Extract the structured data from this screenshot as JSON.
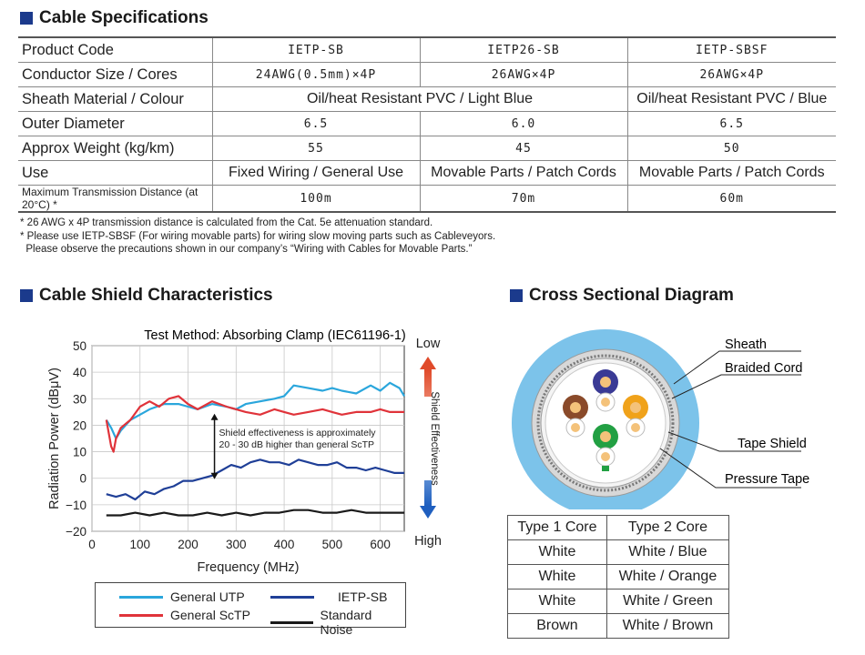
{
  "specs": {
    "title": "Cable Specifications",
    "header": {
      "label": "Product Code",
      "col1": "IETP-SB",
      "col2": "IETP26-SB",
      "col3": "IETP-SBSF"
    },
    "rows": [
      {
        "label": "Conductor Size / Cores",
        "col1": "24AWG(0.5mm)×4P",
        "col2": "26AWG×4P",
        "col3": "26AWG×4P"
      },
      {
        "label": "Sheath Material / Colour",
        "col12": "Oil/heat Resistant PVC / Light Blue",
        "col3": "Oil/heat Resistant PVC / Blue"
      },
      {
        "label": "Outer Diameter",
        "col1": "6.5",
        "col2": "6.0",
        "col3": "6.5"
      },
      {
        "label": "Approx Weight (kg/km)",
        "col1": "55",
        "col2": "45",
        "col3": "50"
      },
      {
        "label": "Use",
        "col1": "Fixed Wiring / General Use",
        "col2": "Movable Parts / Patch Cords",
        "col3": "Movable Parts / Patch Cords"
      },
      {
        "label": "Maximum Transmission Distance (at 20°C) *",
        "col1": "100m",
        "col2": "70m",
        "col3": "60m"
      }
    ],
    "notes": [
      "* 26 AWG x 4P transmission distance is calculated from the Cat. 5e attenuation standard.",
      "* Please use IETP-SBSF (For wiring movable parts) for wiring slow moving parts such as Cableveyors.",
      "  Please observe the precautions shown in our company’s “Wiring with Cables for Movable Parts.”"
    ]
  },
  "shield": {
    "title": "Cable Shield Characteristics"
  },
  "chart_data": {
    "type": "line",
    "title": "Test Method: Absorbing Clamp (IEC61196-1)",
    "xlabel": "Frequency (MHz)",
    "ylabel": "Radiation Power (dBμV)",
    "xlim": [
      0,
      650
    ],
    "ylim": [
      -20,
      50
    ],
    "xticks": [
      "0",
      "100",
      "200",
      "300",
      "400",
      "500",
      "600"
    ],
    "xtick_values": [
      0,
      100,
      200,
      300,
      400,
      500,
      600
    ],
    "yticks": [
      "50",
      "40",
      "30",
      "20",
      "10",
      "0",
      "−10",
      "−20"
    ],
    "ytick_values": [
      50,
      40,
      30,
      20,
      10,
      0,
      -10,
      -20
    ],
    "series": [
      {
        "name": "General UTP",
        "color": "#2aa6dc",
        "x": [
          30,
          40,
          50,
          60,
          80,
          100,
          120,
          150,
          180,
          200,
          220,
          250,
          280,
          300,
          320,
          350,
          380,
          400,
          420,
          450,
          480,
          500,
          520,
          550,
          580,
          600,
          620,
          640,
          650
        ],
        "y": [
          22,
          19,
          15,
          18,
          22,
          24,
          26,
          28,
          28,
          27,
          26,
          28,
          27,
          26,
          28,
          29,
          30,
          31,
          35,
          34,
          33,
          34,
          33,
          32,
          35,
          33,
          36,
          34,
          31
        ]
      },
      {
        "name": "General ScTP",
        "color": "#e0333a",
        "x": [
          30,
          40,
          45,
          50,
          60,
          80,
          100,
          120,
          140,
          160,
          180,
          200,
          220,
          250,
          280,
          300,
          320,
          350,
          380,
          400,
          420,
          450,
          480,
          500,
          520,
          550,
          580,
          600,
          620,
          650
        ],
        "y": [
          22,
          12,
          10,
          15,
          19,
          22,
          27,
          29,
          27,
          30,
          31,
          28,
          26,
          29,
          27,
          26,
          25,
          24,
          26,
          25,
          24,
          25,
          26,
          25,
          24,
          25,
          25,
          26,
          25,
          25
        ]
      },
      {
        "name": "IETP-SB",
        "color": "#1f3f97",
        "x": [
          30,
          50,
          70,
          90,
          110,
          130,
          150,
          170,
          190,
          210,
          230,
          250,
          270,
          290,
          310,
          330,
          350,
          370,
          390,
          410,
          430,
          450,
          470,
          490,
          510,
          530,
          550,
          570,
          590,
          610,
          630,
          650
        ],
        "y": [
          -6,
          -7,
          -6,
          -8,
          -5,
          -6,
          -4,
          -3,
          -1,
          -1,
          0,
          1,
          3,
          5,
          4,
          6,
          7,
          6,
          6,
          5,
          7,
          6,
          5,
          5,
          6,
          4,
          4,
          3,
          4,
          3,
          2,
          2
        ]
      },
      {
        "name": "Standard Noise",
        "color": "#1a1a1a",
        "x": [
          30,
          60,
          90,
          120,
          150,
          180,
          210,
          240,
          270,
          300,
          330,
          360,
          390,
          420,
          450,
          480,
          510,
          540,
          570,
          600,
          630,
          650
        ],
        "y": [
          -14,
          -14,
          -13,
          -14,
          -13,
          -14,
          -14,
          -13,
          -14,
          -13,
          -14,
          -13,
          -13,
          -12,
          -12,
          -13,
          -13,
          -12,
          -13,
          -13,
          -13,
          -13
        ]
      }
    ],
    "annotation": [
      "Shield effectiveness is approximately",
      "20 - 30 dB higher than general ScTP"
    ],
    "effectiveness": {
      "axis_label": "Shield Effectiveness",
      "low": "Low",
      "high": "High"
    }
  },
  "legend": [
    {
      "name": "General UTP",
      "color": "#2aa6dc"
    },
    {
      "name": "General ScTP",
      "color": "#e0333a"
    },
    {
      "name": "IETP-SB",
      "color": "#1f3f97"
    },
    {
      "name": "Standard Noise",
      "color": "#1a1a1a"
    }
  ],
  "cross": {
    "title": "Cross Sectional Diagram",
    "labels": {
      "sheath": "Sheath",
      "braided": "Braided Cord",
      "tape": "Tape Shield",
      "pressure": "Pressure Tape"
    },
    "colors": {
      "sheath": "#7cc3ea",
      "pair_blue": "#3a3a95",
      "pair_orange": "#f0a21a",
      "pair_green": "#22a043",
      "pair_brown": "#8a4a2a"
    }
  },
  "cores": {
    "header": [
      "Type 1 Core",
      "Type 2 Core"
    ],
    "rows": [
      [
        "White",
        "White / Blue"
      ],
      [
        "White",
        "White / Orange"
      ],
      [
        "White",
        "White / Green"
      ],
      [
        "Brown",
        "White / Brown"
      ]
    ]
  }
}
